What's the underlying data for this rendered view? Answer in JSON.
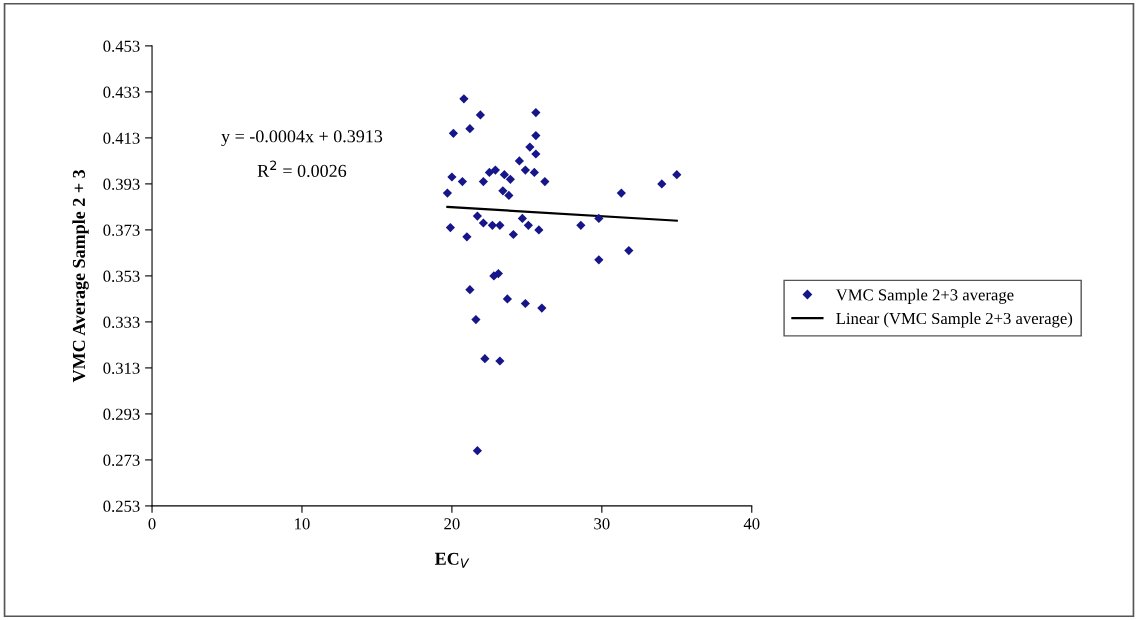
{
  "chart_data": {
    "type": "scatter",
    "xlabel": "EC$_{V}$",
    "ylabel": "VMC Average Sample 2 + 3",
    "xlim": [
      0,
      40
    ],
    "xticks": [
      0,
      10,
      20,
      30,
      40
    ],
    "ylim": [
      0.253,
      0.453
    ],
    "yticks": [
      0.253,
      0.273,
      0.293,
      0.313,
      0.333,
      0.353,
      0.373,
      0.393,
      0.413,
      0.433,
      0.453
    ],
    "grid": false,
    "legend": "right",
    "marker": "diamond",
    "annotations": [
      "y = -0.0004x + 0.3913",
      "R$^{2}$ = 0.0026"
    ],
    "series": [
      {
        "name": "VMC Sample 2+3 average",
        "color": "#16168a",
        "x": [
          20.8,
          21.9,
          25.6,
          20.1,
          21.2,
          25.6,
          25.2,
          25.6,
          24.5,
          24.9,
          25.5,
          26.2,
          22.5,
          22.9,
          23.5,
          23.9,
          23.4,
          23.8,
          20.0,
          20.7,
          22.1,
          19.7,
          21.7,
          22.1,
          22.7,
          23.2,
          19.9,
          21.0,
          24.7,
          25.1,
          25.8,
          24.1,
          22.8,
          23.1,
          21.2,
          23.7,
          24.9,
          26.0,
          21.6,
          22.2,
          23.2,
          21.7,
          31.3,
          34.0,
          35.0,
          28.6,
          29.8,
          29.8,
          31.8
        ],
        "values": [
          0.43,
          0.423,
          0.424,
          0.415,
          0.417,
          0.414,
          0.409,
          0.406,
          0.403,
          0.399,
          0.398,
          0.394,
          0.398,
          0.399,
          0.397,
          0.395,
          0.39,
          0.388,
          0.396,
          0.394,
          0.394,
          0.389,
          0.379,
          0.376,
          0.375,
          0.375,
          0.374,
          0.37,
          0.378,
          0.375,
          0.373,
          0.371,
          0.353,
          0.354,
          0.347,
          0.343,
          0.341,
          0.339,
          0.334,
          0.317,
          0.316,
          0.277,
          0.389,
          0.393,
          0.397,
          0.375,
          0.378,
          0.36,
          0.364
        ]
      },
      {
        "name": "Linear (VMC Sample 2+3 average)",
        "color": "#000000",
        "type": "line",
        "marker": "none",
        "line_style": "solid",
        "x": [
          19.7,
          35.0
        ],
        "values": [
          0.383,
          0.377
        ]
      }
    ]
  }
}
